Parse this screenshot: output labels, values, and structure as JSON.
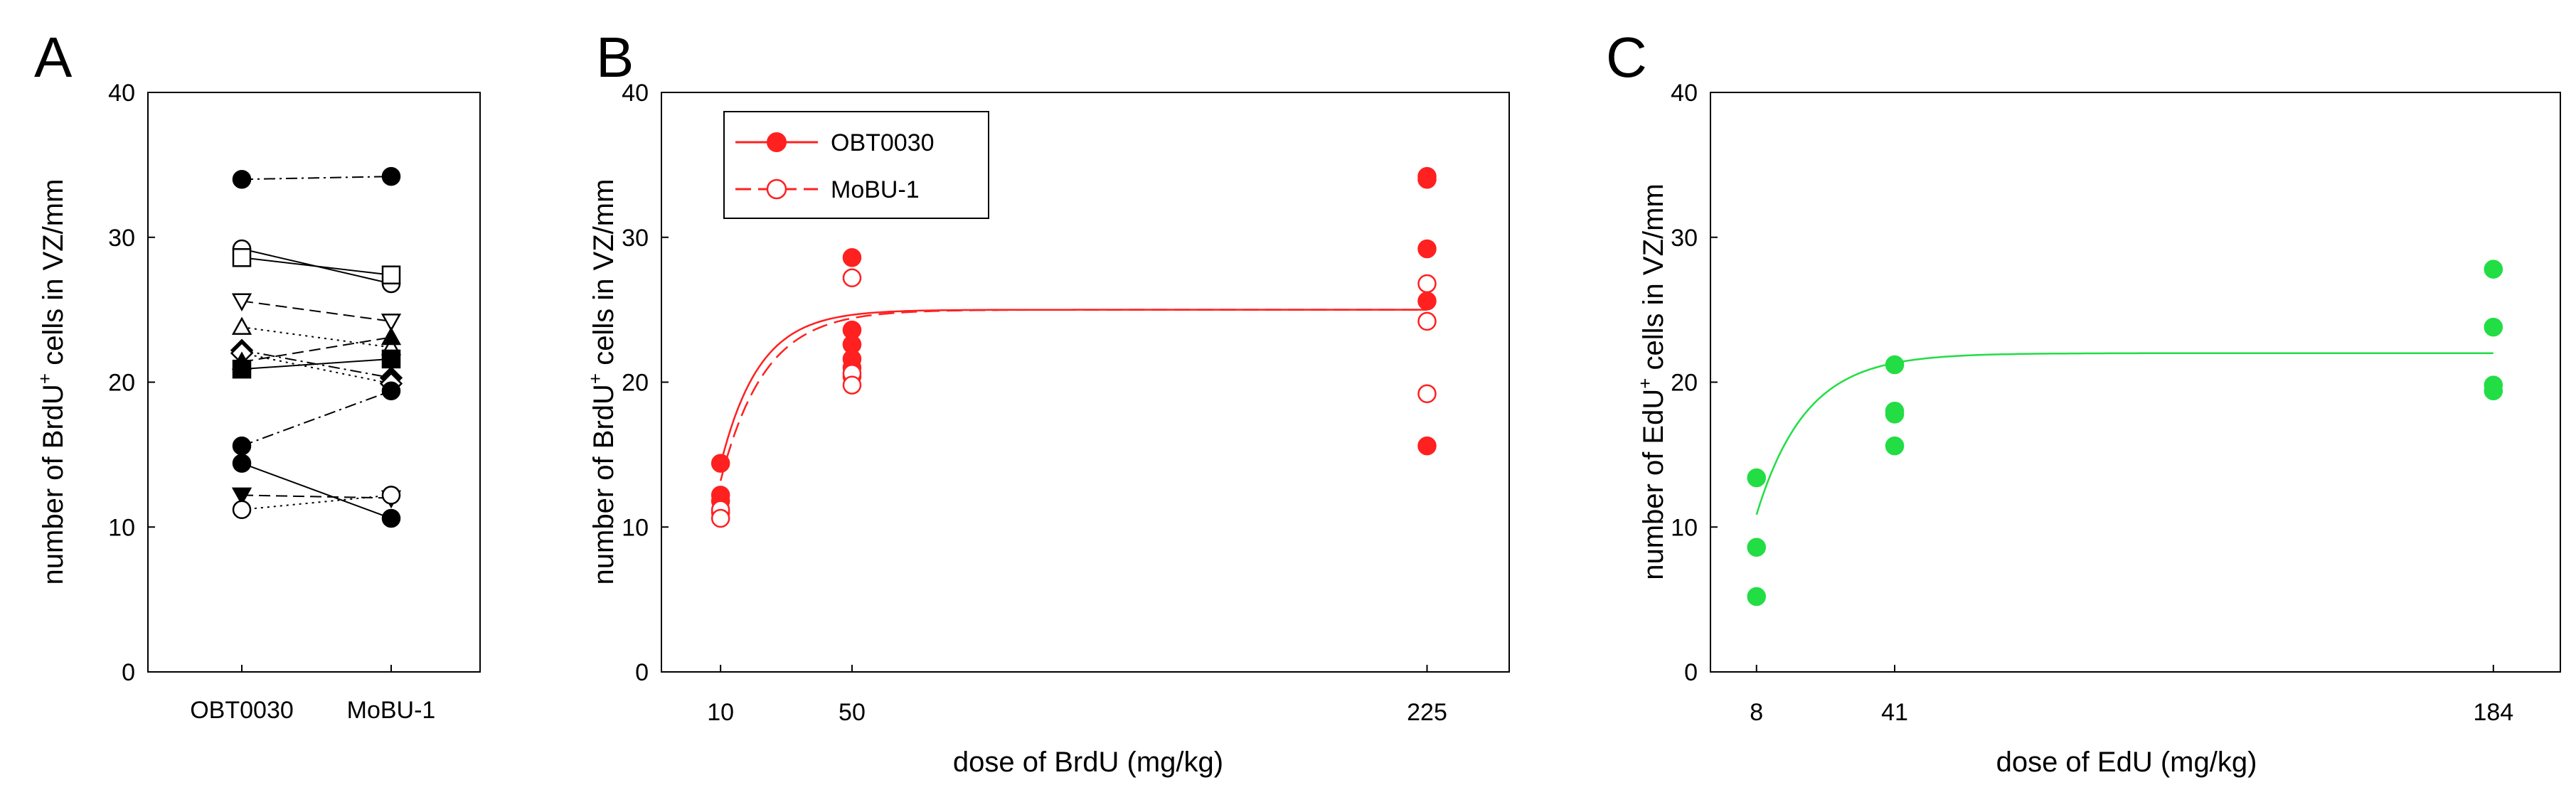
{
  "chart_data": [
    {
      "panel": "A",
      "type": "paired-line",
      "ylabel_main": "number of BrdU",
      "ylabel_sup": "+",
      "ylabel_rest": " cells in VZ/mm",
      "xlabel": "",
      "ylim": [
        0,
        40
      ],
      "yticks": [
        "0",
        "10",
        "20",
        "30",
        "40"
      ],
      "categories": [
        "OBT0030",
        "MoBU-1"
      ],
      "pairs": [
        {
          "values": [
            34.0,
            34.2
          ],
          "marker": "filled-circle",
          "dash": "dashdot"
        },
        {
          "values": [
            29.2,
            26.8
          ],
          "marker": "open-circle",
          "dash": "solid"
        },
        {
          "values": [
            28.6,
            27.4
          ],
          "marker": "open-square",
          "dash": "solid"
        },
        {
          "values": [
            25.6,
            24.2
          ],
          "marker": "open-triangle-down",
          "dash": "dashed"
        },
        {
          "values": [
            23.8,
            22.4
          ],
          "marker": "open-triangle-up",
          "dash": "dotted"
        },
        {
          "values": [
            22.2,
            20.3
          ],
          "marker": "filled-diamond",
          "dash": "dashdot"
        },
        {
          "values": [
            22.0,
            19.9
          ],
          "marker": "open-diamond",
          "dash": "dotted"
        },
        {
          "values": [
            21.4,
            23.1
          ],
          "marker": "filled-triangle-up",
          "dash": "dashed"
        },
        {
          "values": [
            20.9,
            21.6
          ],
          "marker": "filled-square",
          "dash": "solid"
        },
        {
          "values": [
            15.6,
            19.4
          ],
          "marker": "filled-circle",
          "dash": "dashdot"
        },
        {
          "values": [
            14.4,
            10.6
          ],
          "marker": "filled-circle",
          "dash": "solid"
        },
        {
          "values": [
            12.2,
            12.0
          ],
          "marker": "filled-triangle-down",
          "dash": "dashed"
        },
        {
          "values": [
            11.2,
            12.2
          ],
          "marker": "open-circle",
          "dash": "dotted"
        }
      ]
    },
    {
      "panel": "B",
      "type": "scatter",
      "ylabel_main": "number of BrdU",
      "ylabel_sup": "+",
      "ylabel_rest": " cells in VZ/mm",
      "xlabel": "dose of BrdU (mg/kg)",
      "ylim": [
        0,
        40
      ],
      "yticks": [
        "0",
        "10",
        "20",
        "30",
        "40"
      ],
      "xlim": [
        -8,
        250
      ],
      "xticks": [
        10,
        50,
        225
      ],
      "xtick_labels": [
        "10",
        "50",
        "225"
      ],
      "color": "#ff2020",
      "legend": [
        {
          "label": "OBT0030",
          "marker": "filled-circle",
          "dash": "solid"
        },
        {
          "label": "MoBU-1",
          "marker": "open-circle",
          "dash": "dashed"
        }
      ],
      "series": [
        {
          "name": "OBT0030",
          "marker": "filled-circle",
          "x": [
            10,
            10,
            10,
            10,
            50,
            50,
            50,
            50,
            50,
            50,
            225,
            225,
            225,
            225,
            225
          ],
          "y": [
            14.4,
            12.2,
            11.8,
            11.0,
            28.6,
            23.6,
            22.6,
            21.6,
            21.0,
            20.4,
            34.2,
            34.0,
            29.2,
            25.6,
            15.6
          ],
          "fit": {
            "ymax": 25.0,
            "k": 0.085,
            "x0": 0
          }
        },
        {
          "name": "MoBU-1",
          "marker": "open-circle",
          "x": [
            10,
            10,
            50,
            50,
            50,
            225,
            225,
            225
          ],
          "y": [
            11.2,
            10.6,
            27.2,
            20.6,
            19.8,
            26.8,
            24.2,
            19.2
          ],
          "fit": {
            "ymax": 25.0,
            "k": 0.075,
            "x0": 0
          }
        }
      ]
    },
    {
      "panel": "C",
      "type": "scatter",
      "ylabel_main": "number of EdU",
      "ylabel_sup": "+",
      "ylabel_rest": " cells in  VZ/mm",
      "xlabel": "dose of EdU (mg/kg)",
      "ylim": [
        0,
        40
      ],
      "yticks": [
        "0",
        "10",
        "20",
        "30",
        "40"
      ],
      "xlim": [
        -3,
        200
      ],
      "xticks": [
        8,
        41,
        184
      ],
      "xtick_labels": [
        "8",
        "41",
        "184"
      ],
      "color": "#22dd44",
      "series": [
        {
          "name": "EdU",
          "marker": "filled-circle",
          "x": [
            8,
            8,
            8,
            41,
            41,
            41,
            41,
            184,
            184,
            184,
            184
          ],
          "y": [
            13.4,
            8.6,
            5.2,
            21.2,
            18.0,
            17.8,
            15.6,
            27.8,
            23.8,
            19.8,
            19.4
          ],
          "fit": {
            "ymax": 22.0,
            "k": 0.085,
            "x0": 0
          }
        }
      ]
    }
  ]
}
